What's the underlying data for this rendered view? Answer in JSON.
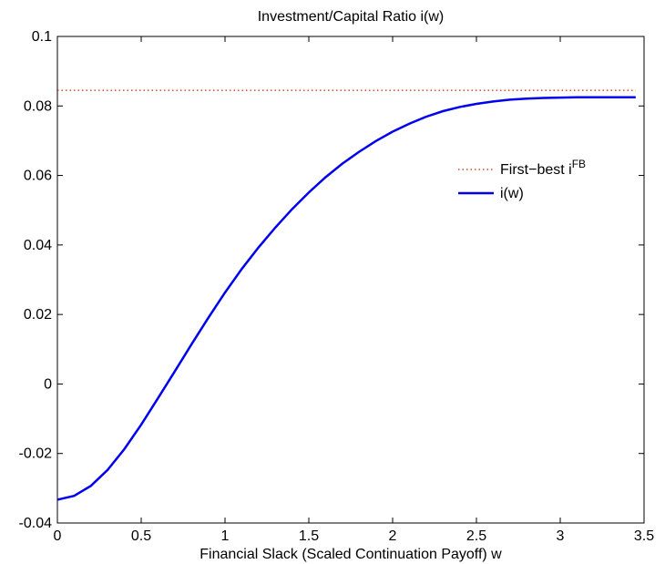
{
  "chart_data": {
    "type": "line",
    "title": "Investment/Capital Ratio i(w)",
    "xlabel": "Financial Slack (Scaled Continuation Payoff) w",
    "ylabel": "",
    "xlim": [
      0,
      3.5
    ],
    "ylim": [
      -0.04,
      0.1
    ],
    "x_ticks": [
      0,
      0.5,
      1,
      1.5,
      2,
      2.5,
      3,
      3.5
    ],
    "x_tick_labels": [
      "0",
      "0.5",
      "1",
      "1.5",
      "2",
      "2.5",
      "3",
      "3.5"
    ],
    "y_ticks": [
      -0.04,
      -0.02,
      0,
      0.02,
      0.04,
      0.06,
      0.08,
      0.1
    ],
    "y_tick_labels": [
      "-0.04",
      "-0.02",
      "0",
      "0.02",
      "0.04",
      "0.06",
      "0.08",
      "0.1"
    ],
    "grid": false,
    "legend_placement": "center-right",
    "series": [
      {
        "name": "First−best i",
        "name_superscript": "FB",
        "style": "dotted",
        "color": "#cc2200",
        "x": [
          0,
          3.45
        ],
        "y": [
          0.0845,
          0.0845
        ]
      },
      {
        "name": "i(w)",
        "style": "solid",
        "color": "#0000ee",
        "x": [
          0,
          0.1,
          0.2,
          0.3,
          0.4,
          0.5,
          0.6,
          0.7,
          0.8,
          0.9,
          1.0,
          1.1,
          1.2,
          1.3,
          1.4,
          1.5,
          1.6,
          1.7,
          1.8,
          1.9,
          2.0,
          2.1,
          2.2,
          2.3,
          2.4,
          2.5,
          2.6,
          2.7,
          2.8,
          2.9,
          3.0,
          3.1,
          3.2,
          3.3,
          3.45
        ],
        "y": [
          -0.0333,
          -0.0322,
          -0.0293,
          -0.0247,
          -0.0187,
          -0.0117,
          -0.0041,
          0.0036,
          0.0114,
          0.019,
          0.0263,
          0.0331,
          0.0393,
          0.045,
          0.0503,
          0.0551,
          0.0595,
          0.0634,
          0.0668,
          0.0699,
          0.0726,
          0.0749,
          0.0769,
          0.0785,
          0.0797,
          0.0806,
          0.0813,
          0.0818,
          0.0821,
          0.0823,
          0.0824,
          0.0825,
          0.0825,
          0.0825,
          0.0825
        ]
      }
    ]
  }
}
